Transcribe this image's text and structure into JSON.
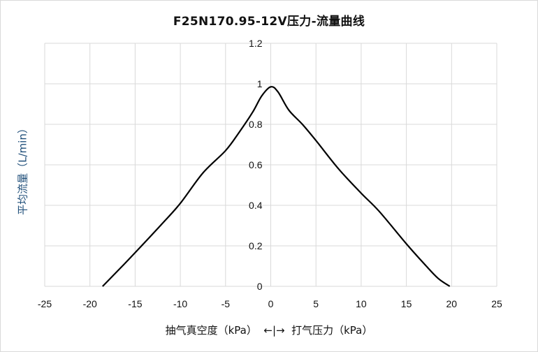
{
  "chart_data": {
    "type": "line",
    "title": "F25N170.95-12V压力-流量曲线",
    "xlabel": "抽气真空度（kPa）  ←|→  打气压力（kPa）",
    "ylabel": "平均流量（L/min）",
    "xlim": [
      -25,
      25
    ],
    "ylim": [
      0,
      1.2
    ],
    "xticks": [
      -25,
      -20,
      -15,
      -10,
      -5,
      0,
      5,
      10,
      15,
      20,
      25
    ],
    "yticks": [
      0,
      0.2,
      0.4,
      0.6,
      0.8,
      1,
      1.2
    ],
    "xtick_labels": [
      "-25",
      "-20",
      "-15",
      "-10",
      "-5",
      "0",
      "5",
      "10",
      "15",
      "20",
      "25"
    ],
    "ytick_labels": [
      "0",
      "0.2",
      "0.4",
      "0.6",
      "0.8",
      "1",
      "1.2"
    ],
    "grid": true,
    "legend": "none",
    "line_color": "#000000",
    "series": [
      {
        "x": [
          -18.6,
          -16.2,
          -14.5,
          -12,
          -10,
          -7.5,
          -5,
          -3.5,
          -2,
          -1,
          0,
          0.8,
          2,
          3.5,
          5,
          7.5,
          10,
          12,
          15,
          17,
          18.5,
          19.8
        ],
        "y": [
          0,
          0.11,
          0.19,
          0.31,
          0.41,
          0.56,
          0.67,
          0.76,
          0.86,
          0.94,
          0.985,
          0.96,
          0.87,
          0.8,
          0.72,
          0.58,
          0.46,
          0.37,
          0.21,
          0.11,
          0.04,
          0
        ]
      }
    ]
  }
}
